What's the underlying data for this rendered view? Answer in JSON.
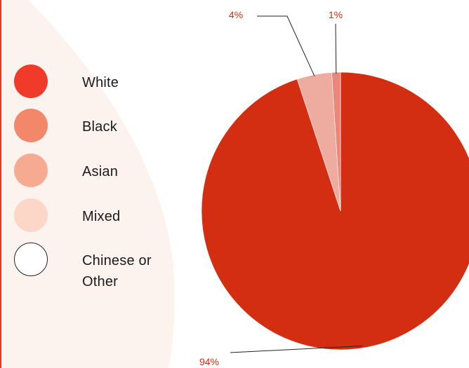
{
  "chart_data": {
    "type": "pie",
    "title": "",
    "slices": [
      {
        "label": "White",
        "value": 94,
        "display": "94%",
        "color": "#d42e12"
      },
      {
        "label": "Black",
        "value": 0,
        "display": "",
        "color": "#f2876a"
      },
      {
        "label": "Asian",
        "value": 4,
        "display": "4%",
        "color": "#eeaca0"
      },
      {
        "label": "Mixed",
        "value": 1,
        "display": "1%",
        "color": "#e8877a"
      },
      {
        "label": "Chinese or Other",
        "value": 0,
        "display": "",
        "color": "#ffffff"
      }
    ],
    "legend": {
      "position": "left",
      "items": [
        {
          "label": "White",
          "color": "#f03a2a"
        },
        {
          "label": "Black",
          "color": "#f2876a"
        },
        {
          "label": "Asian",
          "color": "#f7aa92"
        },
        {
          "label": "Mixed",
          "color": "#fcd6c6"
        },
        {
          "label": "Chinese or Other",
          "color": "#ffffff"
        }
      ]
    },
    "label_color": "#d42e12"
  }
}
